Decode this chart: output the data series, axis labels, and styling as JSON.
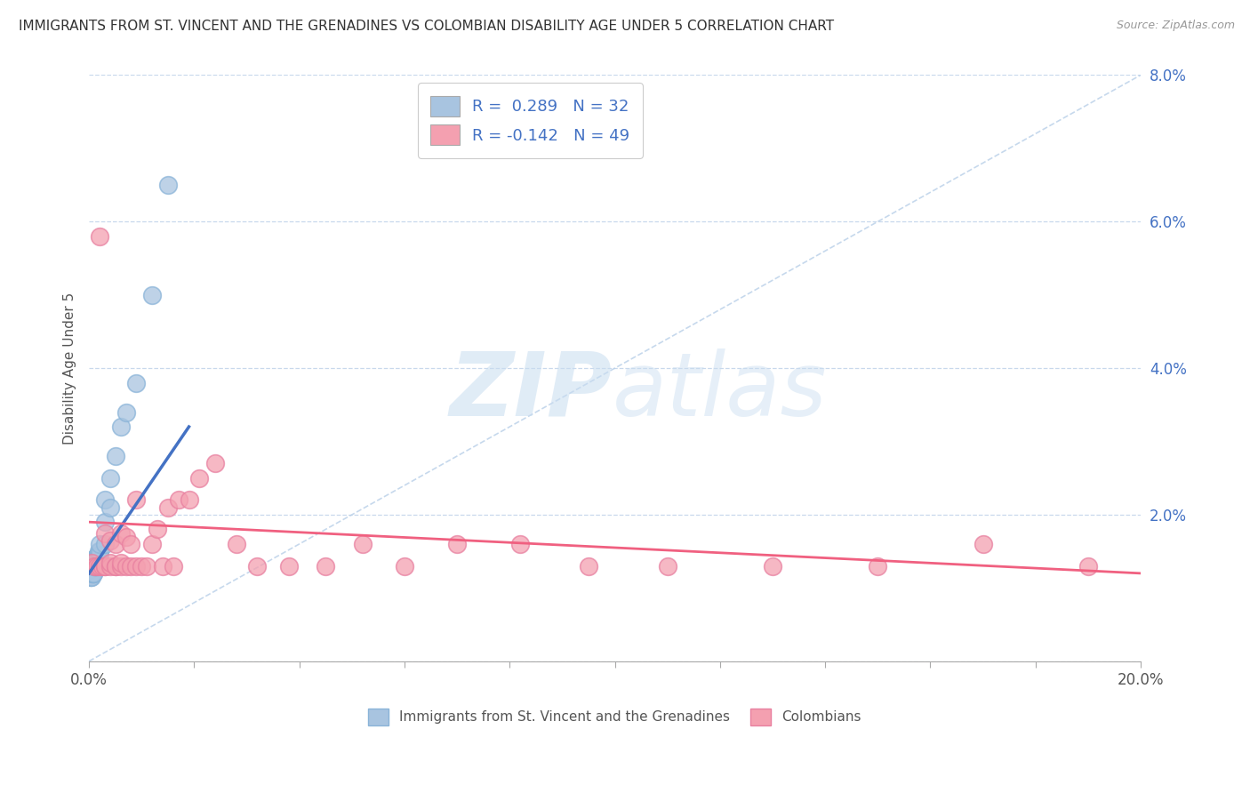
{
  "title": "IMMIGRANTS FROM ST. VINCENT AND THE GRENADINES VS COLOMBIAN DISABILITY AGE UNDER 5 CORRELATION CHART",
  "source": "Source: ZipAtlas.com",
  "ylabel": "Disability Age Under 5",
  "xlim": [
    0.0,
    0.2
  ],
  "ylim": [
    0.0,
    0.08
  ],
  "blue_R": "0.289",
  "blue_N": "32",
  "pink_R": "-0.142",
  "pink_N": "49",
  "blue_color": "#a8c4e0",
  "pink_color": "#f4a0b0",
  "blue_line_color": "#4472c4",
  "pink_line_color": "#f06080",
  "diag_line_color": "#b8cfe8",
  "grid_color": "#c8d8ec",
  "background_color": "#ffffff",
  "blue_scatter_x": [
    0.0002,
    0.0003,
    0.0004,
    0.0005,
    0.0006,
    0.0007,
    0.0008,
    0.0009,
    0.001,
    0.001,
    0.001,
    0.001,
    0.0012,
    0.0013,
    0.0014,
    0.0015,
    0.0016,
    0.0018,
    0.002,
    0.002,
    0.002,
    0.003,
    0.003,
    0.003,
    0.004,
    0.004,
    0.005,
    0.006,
    0.007,
    0.009,
    0.012,
    0.015
  ],
  "blue_scatter_y": [
    0.0125,
    0.0115,
    0.0115,
    0.0115,
    0.012,
    0.012,
    0.012,
    0.012,
    0.013,
    0.013,
    0.0135,
    0.014,
    0.014,
    0.013,
    0.013,
    0.014,
    0.0145,
    0.015,
    0.0145,
    0.015,
    0.016,
    0.016,
    0.019,
    0.022,
    0.021,
    0.025,
    0.028,
    0.032,
    0.034,
    0.038,
    0.05,
    0.065
  ],
  "pink_scatter_x": [
    0.0005,
    0.001,
    0.0015,
    0.002,
    0.002,
    0.0025,
    0.003,
    0.003,
    0.003,
    0.004,
    0.004,
    0.004,
    0.005,
    0.005,
    0.005,
    0.006,
    0.006,
    0.006,
    0.007,
    0.007,
    0.008,
    0.008,
    0.009,
    0.009,
    0.01,
    0.011,
    0.012,
    0.013,
    0.014,
    0.015,
    0.016,
    0.017,
    0.019,
    0.021,
    0.024,
    0.028,
    0.032,
    0.038,
    0.045,
    0.052,
    0.06,
    0.07,
    0.082,
    0.095,
    0.11,
    0.13,
    0.15,
    0.17,
    0.19
  ],
  "pink_scatter_y": [
    0.0135,
    0.013,
    0.013,
    0.013,
    0.058,
    0.013,
    0.013,
    0.013,
    0.0175,
    0.013,
    0.0135,
    0.0165,
    0.013,
    0.013,
    0.016,
    0.013,
    0.0135,
    0.0175,
    0.013,
    0.017,
    0.013,
    0.016,
    0.013,
    0.022,
    0.013,
    0.013,
    0.016,
    0.018,
    0.013,
    0.021,
    0.013,
    0.022,
    0.022,
    0.025,
    0.027,
    0.016,
    0.013,
    0.013,
    0.013,
    0.016,
    0.013,
    0.016,
    0.016,
    0.013,
    0.013,
    0.013,
    0.013,
    0.016,
    0.013
  ],
  "blue_line_x": [
    0.0,
    0.019
  ],
  "blue_line_y": [
    0.012,
    0.032
  ],
  "pink_line_x": [
    0.0,
    0.2
  ],
  "pink_line_y": [
    0.019,
    0.012
  ]
}
